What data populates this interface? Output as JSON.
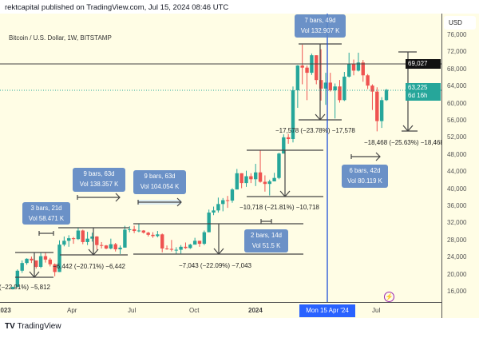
{
  "header": "rektcapital published on TradingView.com, Jul 15, 2024 08:46 UTC",
  "symbol": "Bitcoin / U.S. Dollar, 1W, BITSTAMP",
  "currency": "USD",
  "last_price_label": "69,027",
  "current_price": {
    "price": "63,225",
    "countdown": "6d 16h"
  },
  "crosshair_date": "Mon 15 Apr '24",
  "logo": {
    "mark": "TV",
    "text": "TradingView"
  },
  "colors": {
    "up": "#26a69a",
    "down": "#ef5350",
    "background": "#fffde5",
    "crosshair": "#1e4fd8",
    "measure_box": "#5b86c4"
  },
  "measures": [
    {
      "label": "−5,812 (−22.91%) −5,812"
    },
    {
      "label": "−6,442 (−20.71%) −6,442"
    },
    {
      "label": "−7,043 (−22.09%) −7,043"
    },
    {
      "label": "−10,718 (−21.81%) −10,718"
    },
    {
      "label": "−17,578 (−23.78%) −17,578"
    },
    {
      "label": "−18,468 (−25.63%) −18,468"
    }
  ],
  "ranges": [
    {
      "bars": "3 bars, 21d",
      "vol": "Vol 58.471 K"
    },
    {
      "bars": "9 bars, 63d",
      "vol": "Vol 138.357 K"
    },
    {
      "bars": "9 bars, 63d",
      "vol": "Vol 104.054 K"
    },
    {
      "bars": "2 bars, 14d",
      "vol": "Vol 51.5 K"
    },
    {
      "bars": "7 bars, 49d",
      "vol": "Vol 132.907 K"
    },
    {
      "bars": "6 bars, 42d",
      "vol": "Vol 80.119 K"
    }
  ],
  "chart_data": {
    "type": "candlestick",
    "title": "Bitcoin / U.S. Dollar, 1W, BITSTAMP",
    "y_ticks": [
      "76,000",
      "72,000",
      "68,000",
      "64,000",
      "60,000",
      "56,000",
      "52,000",
      "48,000",
      "44,000",
      "40,000",
      "36,000",
      "32,000",
      "28,000",
      "24,000",
      "20,000",
      "16,000"
    ],
    "x_ticks": [
      "2023",
      "Apr",
      "Jul",
      "Oct",
      "2024",
      "Jul"
    ],
    "ylim": [
      14000,
      78000
    ],
    "horizontal_line": 69027,
    "current_price_line": 63225,
    "candles_ohlc": [
      [
        "2023-01-02",
        16600,
        17200,
        16500,
        17100
      ],
      [
        "2023-01-09",
        17100,
        21200,
        17100,
        20900
      ],
      [
        "2023-01-16",
        20900,
        23300,
        20400,
        22700
      ],
      [
        "2023-01-23",
        22700,
        23800,
        22300,
        23700
      ],
      [
        "2023-01-30",
        23700,
        24200,
        22700,
        23300
      ],
      [
        "2023-02-06",
        23300,
        23300,
        21400,
        21800
      ],
      [
        "2023-02-13",
        21800,
        25200,
        21500,
        24300
      ],
      [
        "2023-02-20",
        24300,
        25100,
        22800,
        23500
      ],
      [
        "2023-02-27",
        23500,
        23900,
        21900,
        22400
      ],
      [
        "2023-03-06",
        22400,
        22600,
        19600,
        20600
      ],
      [
        "2023-03-13",
        20600,
        28000,
        20600,
        27000
      ],
      [
        "2023-03-20",
        27000,
        28900,
        26600,
        27900
      ],
      [
        "2023-03-27",
        27900,
        29200,
        26500,
        28500
      ],
      [
        "2023-04-03",
        28500,
        28800,
        27200,
        28300
      ],
      [
        "2023-04-10",
        28300,
        31000,
        28100,
        30300
      ],
      [
        "2023-04-17",
        30300,
        30500,
        27100,
        27600
      ],
      [
        "2023-04-24",
        27600,
        30000,
        26900,
        28400
      ],
      [
        "2023-05-01",
        28400,
        29800,
        27700,
        28900
      ],
      [
        "2023-05-08",
        28900,
        29000,
        25800,
        26900
      ],
      [
        "2023-05-15",
        26900,
        27600,
        26100,
        26800
      ],
      [
        "2023-05-22",
        26800,
        26900,
        25900,
        26100
      ],
      [
        "2023-05-29",
        26100,
        28400,
        25900,
        27100
      ],
      [
        "2023-06-05",
        27100,
        27400,
        25400,
        25900
      ],
      [
        "2023-06-12",
        25900,
        26800,
        24800,
        26300
      ],
      [
        "2023-06-19",
        26300,
        31400,
        26300,
        30500
      ],
      [
        "2023-06-26",
        30500,
        31300,
        29900,
        30600
      ],
      [
        "2023-07-03",
        30600,
        31400,
        29700,
        30200
      ],
      [
        "2023-07-10",
        30200,
        31800,
        29900,
        30300
      ],
      [
        "2023-07-17",
        30300,
        30400,
        29600,
        29800
      ],
      [
        "2023-07-24",
        29800,
        30000,
        28900,
        29300
      ],
      [
        "2023-07-31",
        29300,
        29900,
        28600,
        29000
      ],
      [
        "2023-08-07",
        29000,
        30200,
        28700,
        29400
      ],
      [
        "2023-08-14",
        29400,
        29600,
        25200,
        26100
      ],
      [
        "2023-08-21",
        26100,
        26800,
        25800,
        26000
      ],
      [
        "2023-08-28",
        26000,
        28100,
        25400,
        25800
      ],
      [
        "2023-09-04",
        25800,
        26400,
        24900,
        25800
      ],
      [
        "2023-09-11",
        25800,
        26900,
        24900,
        26500
      ],
      [
        "2023-09-18",
        26500,
        27500,
        26000,
        26200
      ],
      [
        "2023-09-25",
        26200,
        27200,
        26000,
        27000
      ],
      [
        "2023-10-02",
        27000,
        28600,
        27200,
        27900
      ],
      [
        "2023-10-09",
        27900,
        27900,
        26500,
        27200
      ],
      [
        "2023-10-16",
        27200,
        30300,
        26900,
        29900
      ],
      [
        "2023-10-23",
        29900,
        35200,
        29900,
        34500
      ],
      [
        "2023-10-30",
        34500,
        35900,
        33900,
        35000
      ],
      [
        "2023-11-06",
        35000,
        38000,
        34500,
        36500
      ],
      [
        "2023-11-13",
        36500,
        37900,
        34800,
        37400
      ],
      [
        "2023-11-20",
        37400,
        38400,
        35600,
        37300
      ],
      [
        "2023-11-27",
        37300,
        40200,
        36800,
        39900
      ],
      [
        "2023-12-04",
        39900,
        44700,
        39900,
        43700
      ],
      [
        "2023-12-11",
        43700,
        43700,
        40200,
        41400
      ],
      [
        "2023-12-18",
        41400,
        44300,
        40500,
        43000
      ],
      [
        "2023-12-25",
        43000,
        43700,
        41400,
        42300
      ],
      [
        "2024-01-01",
        42300,
        45900,
        40700,
        43900
      ],
      [
        "2024-01-08",
        43900,
        49000,
        41500,
        41700
      ],
      [
        "2024-01-15",
        41700,
        43200,
        39400,
        41200
      ],
      [
        "2024-01-22",
        41200,
        42200,
        38500,
        41800
      ],
      [
        "2024-01-29",
        41800,
        43800,
        41800,
        42600
      ],
      [
        "2024-02-05",
        42600,
        48500,
        42300,
        48300
      ],
      [
        "2024-02-12",
        48300,
        52800,
        48300,
        52100
      ],
      [
        "2024-02-19",
        52100,
        52900,
        50600,
        51700
      ],
      [
        "2024-02-26",
        51700,
        64000,
        50900,
        63100
      ],
      [
        "2024-03-04",
        63100,
        69000,
        59000,
        68900
      ],
      [
        "2024-03-11",
        68900,
        73800,
        64500,
        68400
      ],
      [
        "2024-03-18",
        68400,
        68900,
        60800,
        67200
      ],
      [
        "2024-03-25",
        67200,
        71700,
        66700,
        71300
      ],
      [
        "2024-04-01",
        71300,
        71300,
        64500,
        65500
      ],
      [
        "2024-04-08",
        65500,
        72700,
        60700,
        63500
      ],
      [
        "2024-04-15",
        63500,
        67200,
        59700,
        64900
      ],
      [
        "2024-04-22",
        64900,
        67200,
        62800,
        63100
      ],
      [
        "2024-04-29",
        63100,
        64700,
        56500,
        64000
      ],
      [
        "2024-05-06",
        64000,
        65500,
        60200,
        60800
      ],
      [
        "2024-05-13",
        60800,
        67400,
        60600,
        66300
      ],
      [
        "2024-05-20",
        66300,
        71900,
        66100,
        69300
      ],
      [
        "2024-05-27",
        69300,
        70300,
        66600,
        67700
      ],
      [
        "2024-06-03",
        67700,
        71900,
        67500,
        69600
      ],
      [
        "2024-06-10",
        69600,
        70200,
        65100,
        66600
      ],
      [
        "2024-06-17",
        66600,
        66900,
        63400,
        64200
      ],
      [
        "2024-06-24",
        64200,
        64500,
        58500,
        62800
      ],
      [
        "2024-07-01",
        62800,
        63800,
        53500,
        55900
      ],
      [
        "2024-07-08",
        55900,
        61500,
        54300,
        60800
      ],
      [
        "2024-07-15",
        60800,
        63400,
        60600,
        63225
      ]
    ]
  }
}
